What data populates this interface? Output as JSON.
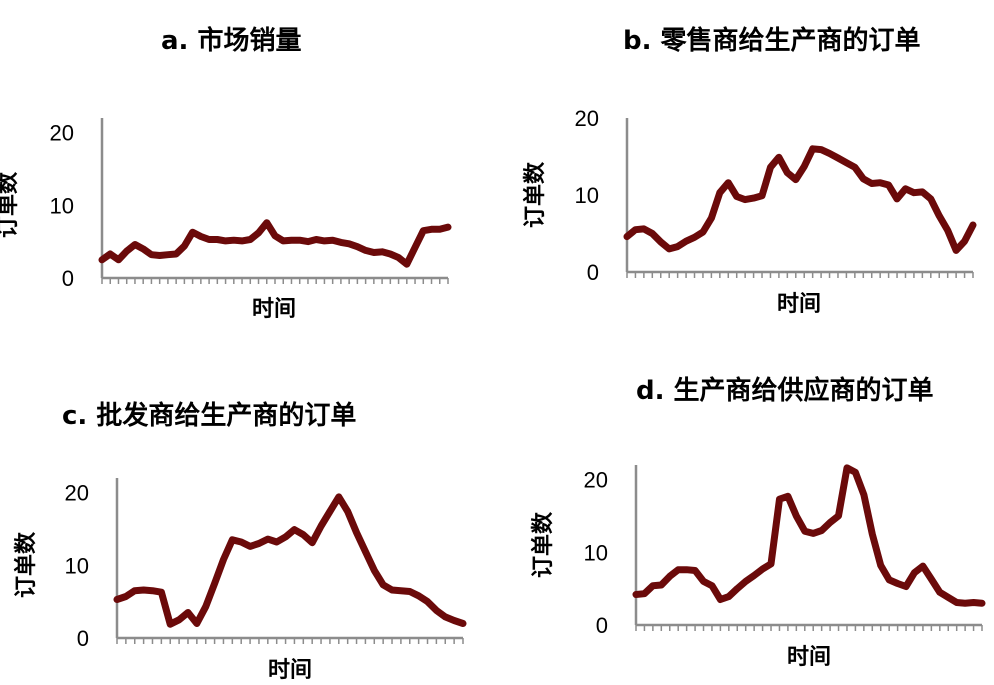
{
  "style": {
    "line_color": "#6b0a0a",
    "axis_color": "#8c8c8c"
  },
  "chart_data": [
    {
      "id": "a",
      "type": "line",
      "title": "a. 市场销量",
      "xlabel": "时间",
      "ylabel": "订单数",
      "yticks": [
        0,
        10,
        20
      ],
      "ylim": [
        0,
        22
      ],
      "series": [
        {
          "values": [
            2.5,
            3.3,
            2.5,
            3.7,
            4.6,
            4.0,
            3.2,
            3.1,
            3.2,
            3.3,
            4.4,
            6.3,
            5.7,
            5.3,
            5.3,
            5.1,
            5.2,
            5.1,
            5.3,
            6.2,
            7.6,
            5.8,
            5.1,
            5.2,
            5.2,
            5.0,
            5.3,
            5.1,
            5.2,
            4.9,
            4.7,
            4.3,
            3.8,
            3.5,
            3.6,
            3.3,
            2.8,
            1.9,
            4.2,
            6.5,
            6.7,
            6.7,
            7.0
          ]
        }
      ]
    },
    {
      "id": "b",
      "type": "line",
      "title": "b. 零售商给生产商的订单",
      "xlabel": "时间",
      "ylabel": "订单数",
      "yticks": [
        0,
        10,
        20
      ],
      "ylim": [
        0,
        20
      ],
      "series": [
        {
          "values": [
            4.6,
            5.5,
            5.6,
            5.0,
            3.9,
            3.0,
            3.3,
            4.0,
            4.5,
            5.2,
            7.0,
            10.3,
            11.6,
            9.8,
            9.4,
            9.6,
            9.9,
            13.6,
            14.9,
            12.9,
            12.0,
            13.7,
            16.0,
            15.9,
            15.4,
            14.8,
            14.2,
            13.6,
            12.1,
            11.5,
            11.6,
            11.3,
            9.5,
            10.8,
            10.3,
            10.4,
            9.5,
            7.3,
            5.4,
            2.8,
            4.0,
            6.1
          ]
        }
      ]
    },
    {
      "id": "c",
      "type": "line",
      "title": "c. 批发商给生产商的订单",
      "xlabel": "时间",
      "ylabel": "订单数",
      "yticks": [
        0,
        10,
        20
      ],
      "ylim": [
        0,
        22
      ],
      "series": [
        {
          "values": [
            5.3,
            5.7,
            6.5,
            6.6,
            6.5,
            6.3,
            1.9,
            2.5,
            3.5,
            2.0,
            4.3,
            7.5,
            10.8,
            13.5,
            13.2,
            12.6,
            13.0,
            13.6,
            13.2,
            13.9,
            14.9,
            14.2,
            13.1,
            15.4,
            17.4,
            19.4,
            17.4,
            14.5,
            11.9,
            9.3,
            7.3,
            6.6,
            6.5,
            6.4,
            5.8,
            5.0,
            3.8,
            2.9,
            2.4,
            2.0
          ]
        }
      ]
    },
    {
      "id": "d",
      "type": "line",
      "title": "d. 生产商给供应商的订单",
      "xlabel": "时间",
      "ylabel": "订单数",
      "yticks": [
        0,
        10,
        20
      ],
      "ylim": [
        0,
        22
      ],
      "series": [
        {
          "values": [
            4.2,
            4.3,
            5.4,
            5.5,
            6.7,
            7.6,
            7.6,
            7.5,
            6.0,
            5.4,
            3.5,
            3.9,
            5.0,
            6.0,
            6.8,
            7.7,
            8.4,
            17.3,
            17.7,
            15.0,
            12.9,
            12.6,
            13.0,
            14.1,
            15.0,
            21.6,
            21.0,
            17.9,
            12.5,
            8.2,
            6.2,
            5.7,
            5.3,
            7.2,
            8.1,
            6.3,
            4.5,
            3.8,
            3.1,
            3.0,
            3.1,
            3.0
          ]
        }
      ]
    }
  ]
}
